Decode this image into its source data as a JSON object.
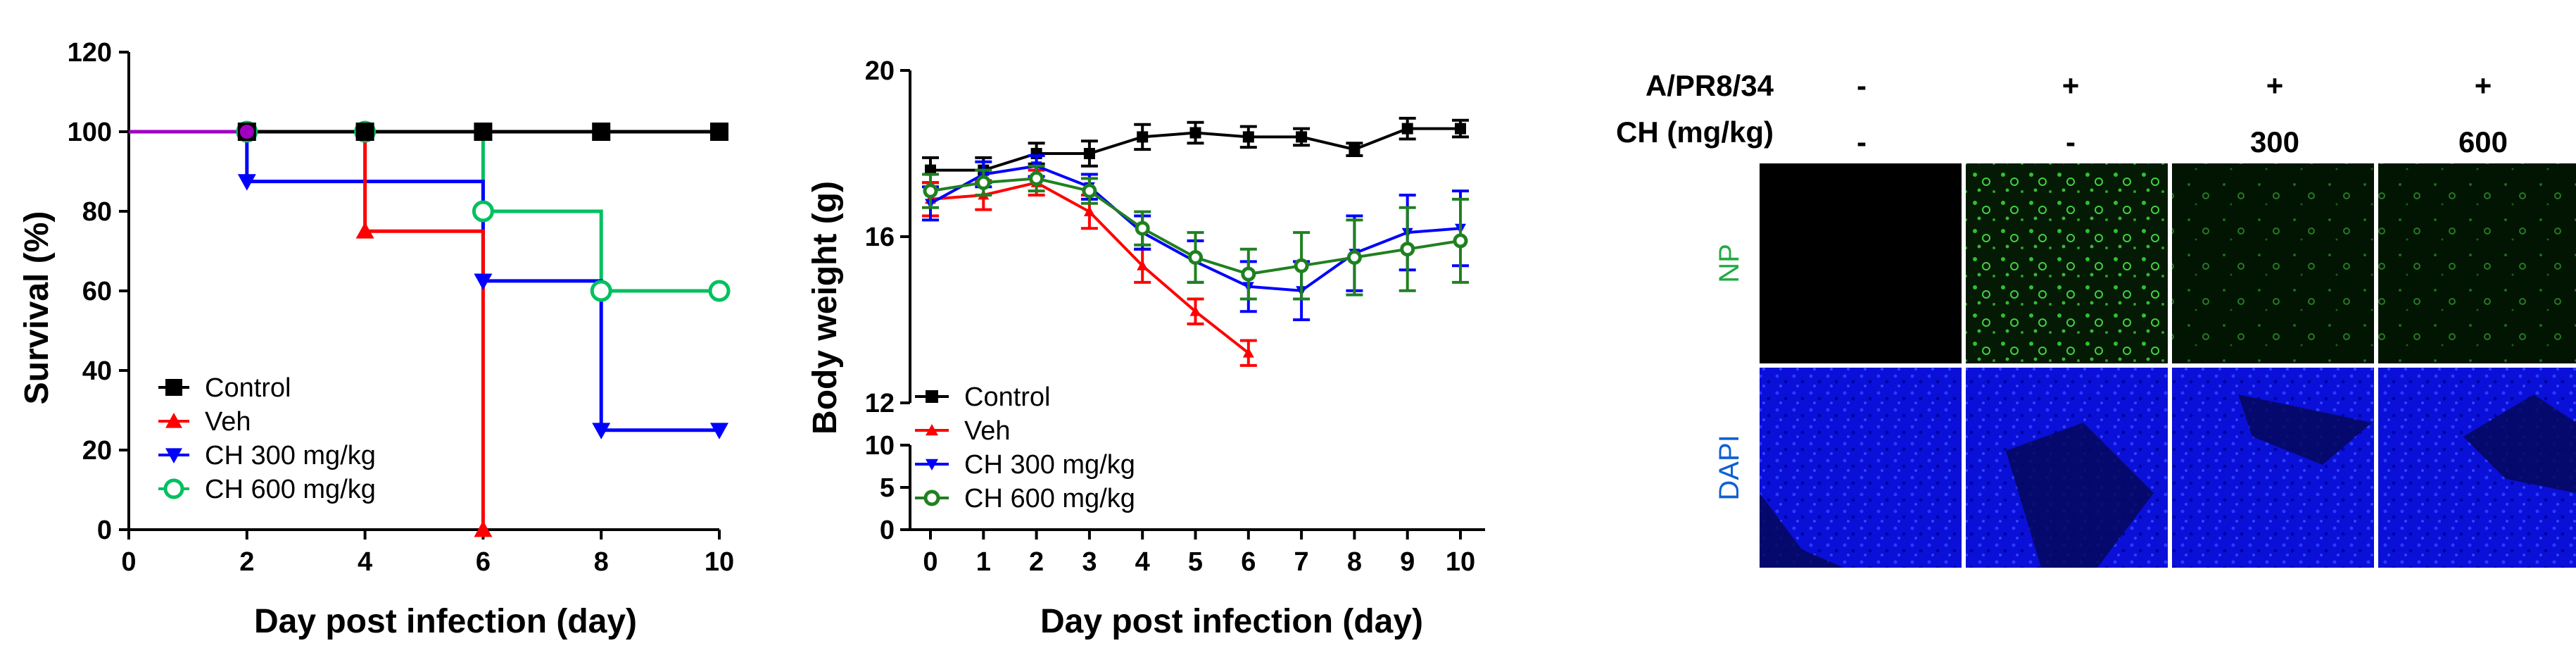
{
  "chart_data": [
    {
      "type": "line",
      "subtype": "step",
      "xlabel": "Day post infection (day)",
      "ylabel": "Survival (%)",
      "xlim": [
        0,
        10
      ],
      "ylim": [
        0,
        120
      ],
      "xticks": [
        "0",
        "2",
        "4",
        "6",
        "8",
        "10"
      ],
      "yticks": [
        "0",
        "20",
        "40",
        "60",
        "80",
        "100",
        "120"
      ],
      "legend_position": "bottom-left",
      "series": [
        {
          "name": "Control",
          "color": "#000000",
          "marker": "square",
          "steps": [
            [
              0,
              100
            ],
            [
              2,
              100
            ],
            [
              4,
              100
            ],
            [
              6,
              100
            ],
            [
              8,
              100
            ],
            [
              10,
              100
            ]
          ],
          "markers": [
            [
              2,
              100
            ],
            [
              4,
              100
            ],
            [
              6,
              100
            ],
            [
              8,
              100
            ],
            [
              10,
              100
            ]
          ]
        },
        {
          "name": "Veh",
          "color": "#ff0000",
          "marker": "triangle-up",
          "steps": [
            [
              0,
              100
            ],
            [
              2,
              100
            ],
            [
              4,
              75
            ],
            [
              6,
              0
            ]
          ],
          "markers": [
            [
              4,
              75
            ],
            [
              6,
              0
            ]
          ]
        },
        {
          "name": "CH 300 mg/kg",
          "color": "#0000ff",
          "marker": "triangle-down",
          "steps": [
            [
              0,
              100
            ],
            [
              2,
              87.5
            ],
            [
              6,
              62.5
            ],
            [
              8,
              25
            ],
            [
              10,
              25
            ]
          ],
          "markers": [
            [
              2,
              87.5
            ],
            [
              6,
              62.5
            ],
            [
              8,
              25
            ],
            [
              10,
              25
            ]
          ]
        },
        {
          "name": "CH 600 mg/kg",
          "color": "#00c060",
          "marker": "circle-open",
          "steps": [
            [
              0,
              100
            ],
            [
              2,
              100
            ],
            [
              4,
              100
            ],
            [
              6,
              80
            ],
            [
              8,
              60
            ],
            [
              10,
              60
            ]
          ],
          "markers": [
            [
              2,
              100
            ],
            [
              4,
              100
            ],
            [
              6,
              80
            ],
            [
              8,
              60
            ],
            [
              10,
              60
            ]
          ]
        }
      ],
      "overlap_color": "#a000c0"
    },
    {
      "type": "line",
      "xlabel": "Day post infection (day)",
      "ylabel": "Body weight (g)",
      "x": [
        0,
        1,
        2,
        3,
        4,
        5,
        6,
        7,
        8,
        9,
        10
      ],
      "xticks": [
        "0",
        "1",
        "2",
        "3",
        "4",
        "5",
        "6",
        "7",
        "8",
        "9",
        "10"
      ],
      "axis_break": true,
      "upper_yticks": [
        "12",
        "16",
        "20"
      ],
      "upper_ylim": [
        12,
        20
      ],
      "lower_yticks": [
        "0",
        "5",
        "10"
      ],
      "lower_ylim": [
        0,
        10
      ],
      "legend_position": "bottom-left",
      "series": [
        {
          "name": "Control",
          "color": "#000000",
          "marker": "square",
          "values": [
            17.6,
            17.6,
            18.0,
            18.0,
            18.4,
            18.5,
            18.4,
            18.4,
            18.1,
            18.6,
            18.6
          ],
          "errors": [
            0.3,
            0.3,
            0.25,
            0.3,
            0.3,
            0.25,
            0.25,
            0.2,
            0.15,
            0.25,
            0.2
          ]
        },
        {
          "name": "Veh",
          "color": "#ff0000",
          "marker": "triangle-up",
          "values": [
            16.9,
            17.0,
            17.3,
            16.6,
            15.3,
            14.2,
            13.2,
            null,
            null,
            null,
            null
          ],
          "errors": [
            0.4,
            0.35,
            0.3,
            0.4,
            0.4,
            0.3,
            0.3,
            null,
            null,
            null,
            null
          ]
        },
        {
          "name": "CH 300 mg/kg",
          "color": "#0000ff",
          "marker": "triangle-down",
          "values": [
            16.8,
            17.5,
            17.7,
            17.2,
            16.1,
            15.4,
            14.8,
            14.7,
            15.6,
            16.1,
            16.2
          ],
          "errors": [
            0.4,
            0.3,
            0.25,
            0.3,
            0.4,
            0.5,
            0.6,
            0.7,
            0.9,
            0.9,
            0.9
          ]
        },
        {
          "name": "CH 600 mg/kg",
          "color": "#208020",
          "marker": "circle-open",
          "values": [
            17.1,
            17.3,
            17.4,
            17.1,
            16.2,
            15.5,
            15.1,
            15.3,
            15.5,
            15.7,
            15.9
          ],
          "errors": [
            0.4,
            0.3,
            0.3,
            0.3,
            0.4,
            0.6,
            0.6,
            0.8,
            0.9,
            1.0,
            1.0
          ]
        }
      ]
    },
    {
      "type": "image-grid",
      "header_rows": [
        {
          "label": "A/PR8/34",
          "values": [
            "-",
            "+",
            "+",
            "+"
          ]
        },
        {
          "label": "CH (mg/kg)",
          "values": [
            "-",
            "-",
            "300",
            "600"
          ]
        }
      ],
      "row_labels": [
        {
          "label": "NP",
          "color": "#22aa44"
        },
        {
          "label": "DAPI",
          "color": "#1060d0"
        }
      ],
      "panel_colors": {
        "NP": "#001400",
        "DAPI": "#0a12e0"
      }
    }
  ]
}
